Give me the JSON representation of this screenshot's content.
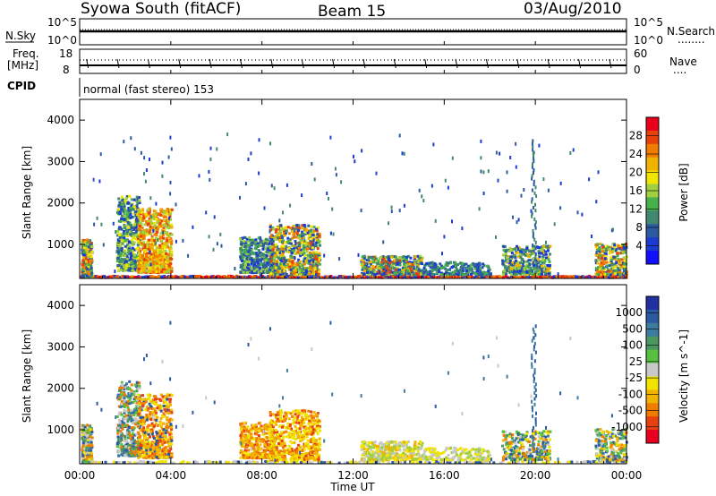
{
  "header": {
    "station": "Syowa South (fitACF)",
    "beam": "Beam 15",
    "date": "03/Aug/2010"
  },
  "top_panel": {
    "left_label": "N.Sky",
    "left_ticks": [
      "10^5",
      "10^0"
    ],
    "right_ticks": [
      "10^5",
      "10^0"
    ],
    "right_label": "N.Search",
    "right_symbol": "........"
  },
  "freq_panel": {
    "left_label_1": "Freq.",
    "left_label_2": "[MHz]",
    "left_ticks": [
      "18",
      "8"
    ],
    "right_ticks": [
      "60",
      "0"
    ],
    "right_label": "Nave",
    "right_symbol": "...."
  },
  "cpid": {
    "label": "CPID",
    "mode": "normal (fast stereo) 153"
  },
  "power_panel": {
    "ylabel": "Slant Range [km]",
    "yticks": [
      "4000",
      "3000",
      "2000",
      "1000"
    ],
    "colorbar_label": "Power [dB]",
    "colorbar_ticks": [
      "28",
      "24",
      "20",
      "16",
      "12",
      "8",
      "4"
    ],
    "colors": [
      "#e8001c",
      "#e8400a",
      "#f07c00",
      "#f0b400",
      "#f0e400",
      "#a0d040",
      "#48b048",
      "#408870",
      "#2c5aa0",
      "#1c3cd0",
      "#1010ff"
    ]
  },
  "velocity_panel": {
    "ylabel": "Slant Range [km]",
    "yticks": [
      "4000",
      "3000",
      "2000",
      "1000"
    ],
    "colorbar_label": "Velocity [m s^-1]",
    "colorbar_ticks": [
      "1000",
      "500",
      "100",
      "25",
      "-25",
      "-100",
      "-500",
      "-1000"
    ],
    "colors": [
      "#2030a0",
      "#2c5aa0",
      "#3c7ca0",
      "#4a9860",
      "#58c040",
      "#c8c8c8",
      "#f0e400",
      "#f0b400",
      "#f07c00",
      "#e84010",
      "#e80020"
    ]
  },
  "xaxis": {
    "label": "Time UT",
    "ticks": [
      "00:00",
      "04:00",
      "08:00",
      "12:00",
      "16:00",
      "20:00",
      "00:00"
    ]
  },
  "chart_data": {
    "type": "heatmap",
    "title": "Syowa South (fitACF)",
    "xlabel": "Time UT",
    "ylabel": "Slant Range [km]",
    "x_range_hours": [
      0,
      24
    ],
    "y_range_km": [
      180,
      4500
    ],
    "regions": [
      {
        "t0": 0.0,
        "t1": 0.5,
        "r0": 300,
        "r1": 1100,
        "power_level": "mixed",
        "velocity_level": "mixed"
      },
      {
        "t0": 1.6,
        "t1": 4.0,
        "r0": 400,
        "r1": 2200,
        "power_level": "16-24",
        "velocity_level": "-100 to 500"
      },
      {
        "t0": 7.5,
        "t1": 10.5,
        "r0": 300,
        "r1": 1500,
        "power_level": "4-20",
        "velocity_level": "-100 to -500"
      },
      {
        "t0": 12.5,
        "t1": 15.0,
        "r0": 300,
        "r1": 700,
        "power_level": "4-24",
        "velocity_level": "-25 to 100"
      },
      {
        "t0": 18.5,
        "t1": 20.5,
        "r0": 300,
        "r1": 1000,
        "power_level": "4-16",
        "velocity_level": "-100 to 500"
      },
      {
        "t0": 22.5,
        "t1": 24.0,
        "r0": 300,
        "r1": 1000,
        "power_level": "4-20",
        "velocity_level": "-100 to 500"
      }
    ]
  }
}
